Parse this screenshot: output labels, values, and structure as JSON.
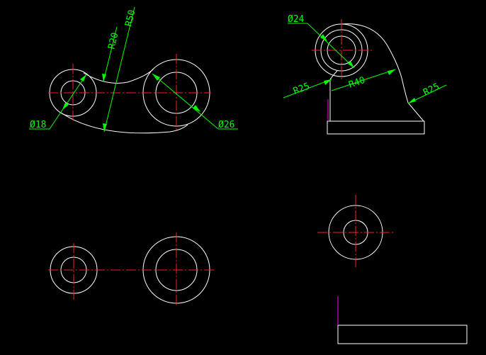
{
  "colors": {
    "background": "#000000",
    "geometry": "#ffffff",
    "centerline": "#ff2020",
    "dimension": "#00ff00",
    "axis_marker": "#ff00ff"
  },
  "dimensions": {
    "r50": "R50",
    "r20": "R20",
    "d18": "Ø18",
    "d26": "Ø26",
    "d24": "Ø24",
    "r25_left": "R25",
    "r40": "R40",
    "r25_right": "R25"
  }
}
